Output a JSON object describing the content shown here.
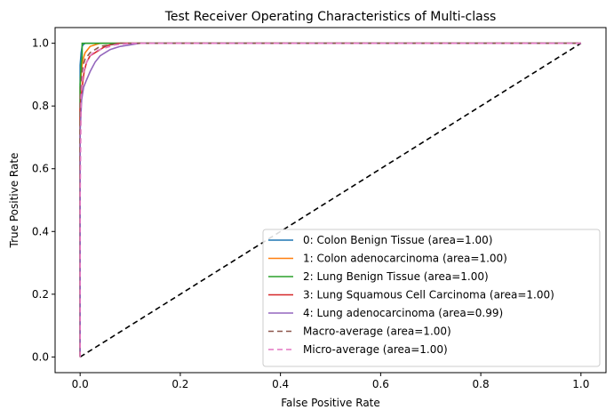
{
  "chart_data": {
    "type": "line",
    "title": "Test Receiver Operating Characteristics of Multi-class",
    "xlabel": "False Positive Rate",
    "ylabel": "True Positive Rate",
    "xlim": [
      -0.05,
      1.05
    ],
    "ylim": [
      -0.05,
      1.05
    ],
    "xticks": [
      0.0,
      0.2,
      0.4,
      0.6,
      0.8,
      1.0
    ],
    "yticks": [
      0.0,
      0.2,
      0.4,
      0.6,
      0.8,
      1.0
    ],
    "xtick_labels": [
      "0.0",
      "0.2",
      "0.4",
      "0.6",
      "0.8",
      "1.0"
    ],
    "ytick_labels": [
      "0.0",
      "0.2",
      "0.4",
      "0.6",
      "0.8",
      "1.0"
    ],
    "grid": false,
    "legend_position": "lower-right",
    "series": [
      {
        "name": "0: Colon Benign Tissue (area=1.00)",
        "color": "#1f77b4",
        "dash": "solid",
        "x": [
          0,
          0,
          0.002,
          0.004,
          0.006,
          0.01,
          1.0
        ],
        "y": [
          0,
          0.93,
          0.97,
          0.99,
          0.995,
          1.0,
          1.0
        ]
      },
      {
        "name": "1: Colon adenocarcinoma (area=1.00)",
        "color": "#ff7f0e",
        "dash": "solid",
        "x": [
          0,
          0,
          0.003,
          0.006,
          0.01,
          0.015,
          0.02,
          0.03,
          0.04,
          1.0
        ],
        "y": [
          0,
          0.86,
          0.92,
          0.95,
          0.97,
          0.98,
          0.99,
          0.995,
          1.0,
          1.0
        ]
      },
      {
        "name": "2: Lung Benign Tissue (area=1.00)",
        "color": "#2ca02c",
        "dash": "solid",
        "x": [
          0,
          0,
          0.002,
          0.004,
          0.004,
          1.0
        ],
        "y": [
          0,
          0.87,
          0.93,
          0.96,
          1.0,
          1.0
        ]
      },
      {
        "name": "3: Lung Squamous Cell Carcinoma (area=1.00)",
        "color": "#d62728",
        "dash": "solid",
        "x": [
          0,
          0,
          0.004,
          0.008,
          0.013,
          0.02,
          0.03,
          0.04,
          0.05,
          0.06,
          0.08,
          1.0
        ],
        "y": [
          0,
          0.79,
          0.86,
          0.91,
          0.94,
          0.96,
          0.97,
          0.98,
          0.99,
          0.995,
          1.0,
          1.0
        ]
      },
      {
        "name": "4: Lung adenocarcinoma (area=0.99)",
        "color": "#9467bd",
        "dash": "solid",
        "x": [
          0,
          0,
          0.003,
          0.007,
          0.012,
          0.02,
          0.03,
          0.04,
          0.05,
          0.06,
          0.08,
          0.1,
          0.12,
          1.0
        ],
        "y": [
          0,
          0.72,
          0.82,
          0.86,
          0.88,
          0.91,
          0.94,
          0.96,
          0.97,
          0.98,
          0.99,
          0.995,
          1.0,
          1.0
        ]
      },
      {
        "name": "Macro-average (area=1.00)",
        "color": "#8c564b",
        "dash": "dashed",
        "x": [
          0,
          0,
          0.003,
          0.006,
          0.01,
          0.02,
          0.03,
          0.04,
          0.06,
          0.08,
          1.0
        ],
        "y": [
          0,
          0.82,
          0.9,
          0.93,
          0.95,
          0.97,
          0.98,
          0.99,
          0.995,
          1.0,
          1.0
        ]
      },
      {
        "name": "Micro-average (area=1.00)",
        "color": "#e377c2",
        "dash": "dashed",
        "x": [
          0,
          0,
          0.002,
          0.005,
          0.01,
          0.02,
          0.03,
          0.05,
          0.07,
          0.1,
          1.0
        ],
        "y": [
          0,
          0.5,
          0.83,
          0.89,
          0.93,
          0.96,
          0.975,
          0.985,
          0.995,
          1.0,
          1.0
        ]
      }
    ],
    "reference_line": {
      "color": "#000000",
      "dash": "dashed",
      "x": [
        0,
        1
      ],
      "y": [
        0,
        1
      ]
    }
  }
}
